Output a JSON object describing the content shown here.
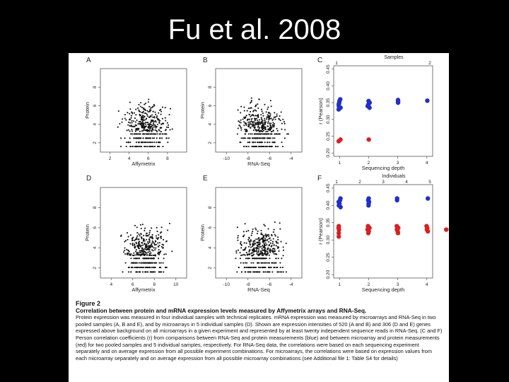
{
  "slide": {
    "title": "Fu et al. 2008"
  },
  "figure": {
    "label": "Figure 2",
    "caption_title": "Correlation between protein and mRNA expression levels measured by Affymetrix arrays and RNA-Seq.",
    "caption_body": "Protein expression was measured in four individual samples with technical replicates. mRNA expression was measured by microarrays and RNA-Seq in two pooled samples (A, B and E), and by microarrays in 5 individual samples (D). Shown are expression intensities of 520 (A and B) and 306 (D and E) genes expressed above background on all microarrays in a given experiment and represented by at least twenty independent sequence reads in RNA-Seq. (C and F) Person correlation coefficients (r) from comparisons between RNA-Seq and protein measurements (blue) and between microarray and protein measurements (red) for two pooled samples and 5 individual samples, respectively. For RNA-Seq data, the correlations were based on each sequencing experiment separately and on average expression from all possible experiment combinations. For microarrays, the correlations were based on expression values from each microarray separately and on average expression from all possible microarray combinations (see Additional file 1: Table S4 for details)"
  },
  "chart_data": [
    {
      "type": "scatter",
      "panel": "A",
      "xlabel": "Affymetrix",
      "ylabel": "Protein",
      "xticks": [
        "2",
        "4",
        "6",
        "8"
      ],
      "yticks": [
        "2",
        "4",
        "6",
        "8"
      ],
      "xlim": [
        1,
        10
      ],
      "ylim": [
        1,
        10
      ],
      "note": "~520 genes; values are dense cloud, individual points not readable"
    },
    {
      "type": "scatter",
      "panel": "B",
      "xlabel": "RNA-Seq",
      "ylabel": "Protein",
      "xticks": [
        "-10",
        "-8",
        "-6",
        "-4"
      ],
      "yticks": [
        "2",
        "4",
        "6",
        "8"
      ],
      "xlim": [
        -11,
        -3
      ],
      "ylim": [
        1,
        10
      ]
    },
    {
      "type": "scatter",
      "panel": "C",
      "title": "Samples",
      "top_ticks": [
        "1",
        "2"
      ],
      "xlabel": "Sequencing depth",
      "ylabel": "r (Pearson)",
      "xticks": [
        "1",
        "2",
        "3",
        "4"
      ],
      "yticks": [
        "0.20",
        "0.25",
        "0.30",
        "0.35",
        "0.40",
        "0.45"
      ],
      "xlim": [
        0.8,
        4.2
      ],
      "ylim": [
        0.19,
        0.46
      ],
      "series": [
        {
          "color": "#2030c8",
          "points": [
            [
              1,
              0.36
            ],
            [
              1,
              0.355
            ],
            [
              1,
              0.35
            ],
            [
              1,
              0.345
            ],
            [
              1,
              0.34
            ],
            [
              1,
              0.335
            ],
            [
              1,
              0.33
            ],
            [
              2,
              0.355
            ],
            [
              2,
              0.35
            ],
            [
              2,
              0.345
            ],
            [
              2,
              0.34
            ],
            [
              2,
              0.335
            ],
            [
              3,
              0.358
            ],
            [
              3,
              0.354
            ],
            [
              3,
              0.35
            ],
            [
              4,
              0.356
            ]
          ]
        },
        {
          "color": "#d82020",
          "points": [
            [
              1,
              0.24
            ],
            [
              1,
              0.235
            ],
            [
              2,
              0.24
            ]
          ]
        }
      ]
    },
    {
      "type": "scatter",
      "panel": "D",
      "xlabel": "Affymetrix",
      "ylabel": "Protein",
      "xticks": [
        "4",
        "6",
        "8",
        "10"
      ],
      "yticks": [
        "2",
        "4",
        "6",
        "8"
      ],
      "xlim": [
        3,
        11
      ],
      "ylim": [
        1,
        10
      ]
    },
    {
      "type": "scatter",
      "panel": "E",
      "xlabel": "RNA-Seq",
      "ylabel": "Protein",
      "xticks": [
        "-10",
        "-8",
        "-6",
        "-4"
      ],
      "yticks": [
        "2",
        "4",
        "6",
        "8"
      ],
      "xlim": [
        -11,
        -3
      ],
      "ylim": [
        1,
        10
      ]
    },
    {
      "type": "scatter",
      "panel": "F",
      "title": "Individuals",
      "top_ticks": [
        "1",
        "2",
        "3",
        "4",
        "5"
      ],
      "xlabel": "Sequencing depth",
      "ylabel": "r (Pearson)",
      "xticks": [
        "1",
        "2",
        "3",
        "4"
      ],
      "yticks": [
        "0.20",
        "0.25",
        "0.30",
        "0.35",
        "0.40",
        "0.45"
      ],
      "xlim": [
        0.8,
        4.2
      ],
      "ylim": [
        0.19,
        0.46
      ],
      "series": [
        {
          "color": "#2030c8",
          "points": [
            [
              1,
              0.42
            ],
            [
              1,
              0.415
            ],
            [
              1,
              0.41
            ],
            [
              1,
              0.405
            ],
            [
              1,
              0.4
            ],
            [
              1,
              0.395
            ],
            [
              2,
              0.42
            ],
            [
              2,
              0.415
            ],
            [
              2,
              0.41
            ],
            [
              2,
              0.405
            ],
            [
              2,
              0.4
            ],
            [
              3,
              0.42
            ],
            [
              3,
              0.415
            ],
            [
              4,
              0.42
            ]
          ]
        },
        {
          "color": "#d82020",
          "points": [
            [
              1,
              0.34
            ],
            [
              1,
              0.335
            ],
            [
              1,
              0.33
            ],
            [
              1,
              0.32
            ],
            [
              1,
              0.31
            ],
            [
              2,
              0.34
            ],
            [
              2,
              0.335
            ],
            [
              2,
              0.33
            ],
            [
              2,
              0.325
            ],
            [
              2,
              0.32
            ],
            [
              3,
              0.34
            ],
            [
              3,
              0.335
            ],
            [
              3,
              0.33
            ],
            [
              3,
              0.325
            ],
            [
              3,
              0.32
            ],
            [
              4,
              0.34
            ],
            [
              4,
              0.335
            ],
            [
              4,
              0.33
            ],
            [
              4,
              0.325
            ],
            [
              4.7,
              0.33
            ]
          ]
        }
      ]
    }
  ]
}
